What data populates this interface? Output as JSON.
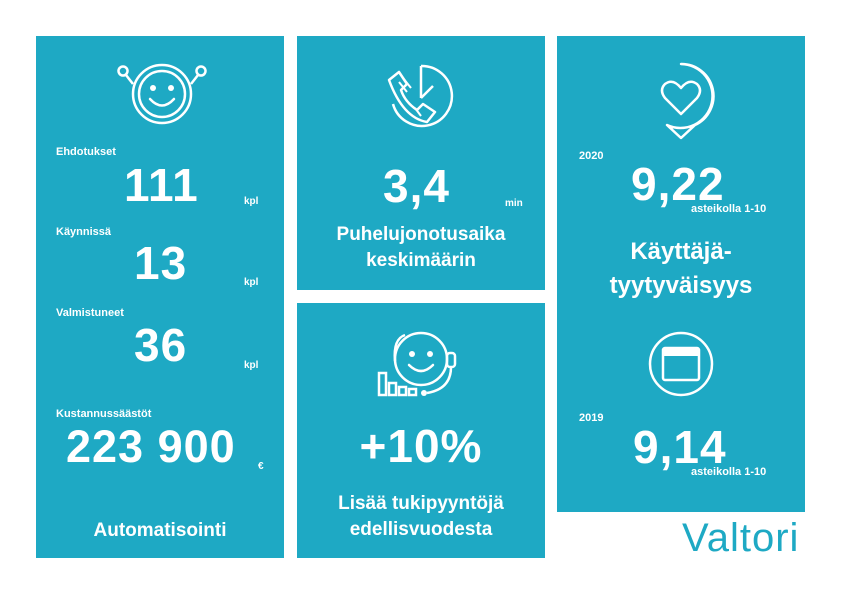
{
  "automation": {
    "items": [
      {
        "label": "Ehdotukset",
        "value": "111",
        "unit": "kpl"
      },
      {
        "label": "Käynnissä",
        "value": "13",
        "unit": "kpl"
      },
      {
        "label": "Valmistuneet",
        "value": "36",
        "unit": "kpl"
      }
    ],
    "savings": {
      "label": "Kustannussäästöt",
      "value": "223 900",
      "unit": "€"
    },
    "title": "Automatisointi",
    "icon": "smiley-robot-icon"
  },
  "queue": {
    "value": "3,4",
    "unit": "min",
    "title_line1": "Puhelujonotusaika",
    "title_line2": "keskimäärin",
    "icon": "phone-clock-icon"
  },
  "support": {
    "value": "+10%",
    "title_line1": "Lisää tukipyyntöjä",
    "title_line2": "edellisvuodesta",
    "icon": "support-agent-icon"
  },
  "satisfaction": {
    "y2020": {
      "year": "2020",
      "value": "9,22",
      "scale": "asteikolla 1-10"
    },
    "title_line1": "Käyttäjä-",
    "title_line2": "tyytyväisyys",
    "y2019": {
      "year": "2019",
      "value": "9,14",
      "scale": "asteikolla 1-10"
    },
    "icons": [
      "heart-bubble-icon",
      "calendar-icon"
    ]
  },
  "logo": "Valtori",
  "colors": {
    "panel": "#1ea9c4",
    "text": "#ffffff",
    "background": "#ffffff"
  }
}
